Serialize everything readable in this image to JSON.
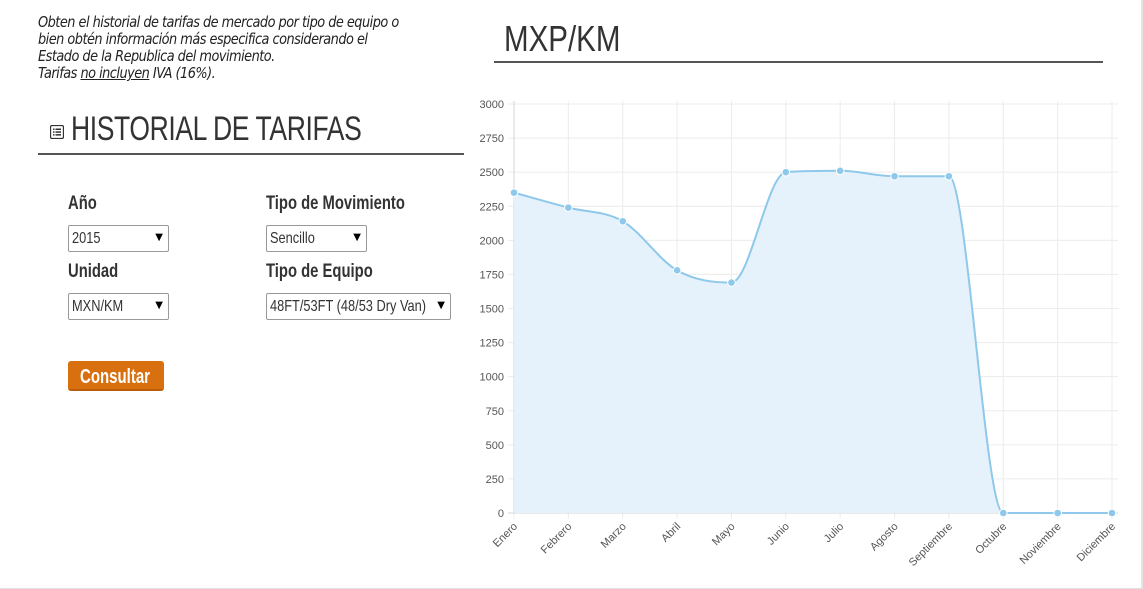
{
  "intro": {
    "line1": "Obten el historial de tarifas de mercado por tipo de equipo o",
    "line2": "bien obtén información más especifica considerando el",
    "line3": "Estado de la Republica del movimiento.",
    "line4_prefix": "Tarifas ",
    "line4_underlined": "no incluyen",
    "line4_suffix": " IVA (16%)."
  },
  "history": {
    "icon": "list-icon",
    "title": "HISTORIAL DE TARIFAS"
  },
  "form": {
    "year_label": "Año",
    "year_value": "2015",
    "movement_label": "Tipo de Movimiento",
    "movement_value": "Sencillo",
    "unit_label": "Unidad",
    "unit_value": "MXN/KM",
    "equipment_label": "Tipo de Equipo",
    "equipment_value": "48FT/53FT (48/53 Dry Van)",
    "submit_label": "Consultar"
  },
  "colors": {
    "accent_button": "#d9700f",
    "series_line": "#8ec8ea",
    "series_fill": "#e6f2fb"
  },
  "chart_heading": "MXP/KM",
  "chart_data": {
    "type": "area",
    "title": "MXP/KM",
    "xlabel": "",
    "ylabel": "",
    "categories": [
      "Enero",
      "Febrero",
      "Marzo",
      "Abril",
      "Mayo",
      "Junio",
      "Julio",
      "Agosto",
      "Septiembre",
      "Octubre",
      "Noviembre",
      "Diciembre"
    ],
    "values": [
      2350,
      2240,
      2140,
      1780,
      1690,
      2500,
      2510,
      2470,
      2470,
      0,
      0,
      0
    ],
    "ylim": [
      0,
      3000
    ],
    "yticks": [
      0,
      250,
      500,
      750,
      1000,
      1250,
      1500,
      1750,
      2000,
      2250,
      2500,
      2750,
      3000
    ],
    "grid": true,
    "legend": "none"
  }
}
